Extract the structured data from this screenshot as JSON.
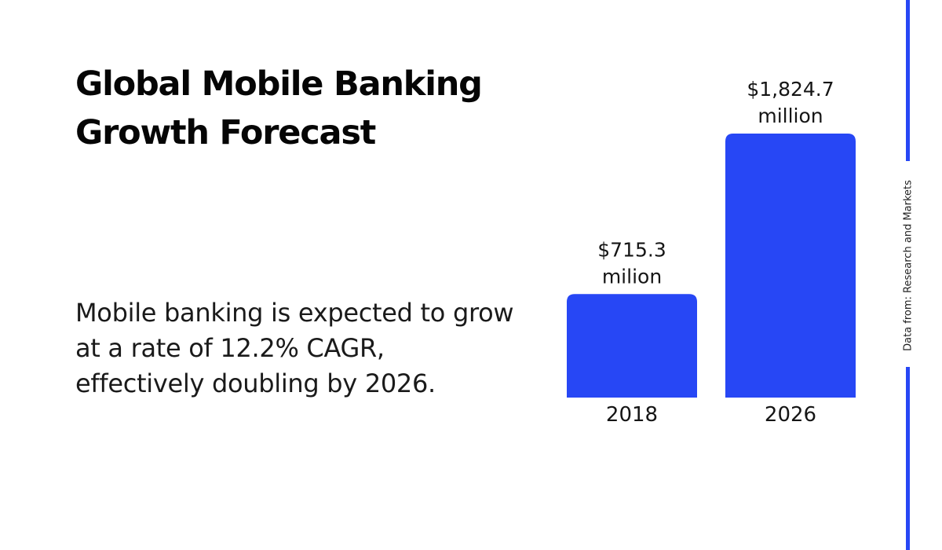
{
  "title": {
    "line1": "Global Mobile Banking",
    "line2": "Growth Forecast"
  },
  "description": "Mobile banking is expected to grow at a rate of 12.2% CAGR, effectively doubling by 2026.",
  "source": "Data from: Research and Markets",
  "colors": {
    "bar": "#2747f5",
    "accent_rule": "#2747f5",
    "text": "#111111",
    "background": "#ffffff"
  },
  "chart_data": {
    "type": "bar",
    "title": "Global Mobile Banking Growth Forecast",
    "categories": [
      "2018",
      "2026"
    ],
    "values": [
      715.3,
      1824.7
    ],
    "unit": "million USD",
    "value_labels": [
      [
        "$715.3",
        "milion"
      ],
      [
        "$1,824.7",
        "million"
      ]
    ],
    "xlabel": "",
    "ylabel": "",
    "ylim": [
      0,
      1824.7
    ],
    "grid": false,
    "legend": "none"
  }
}
